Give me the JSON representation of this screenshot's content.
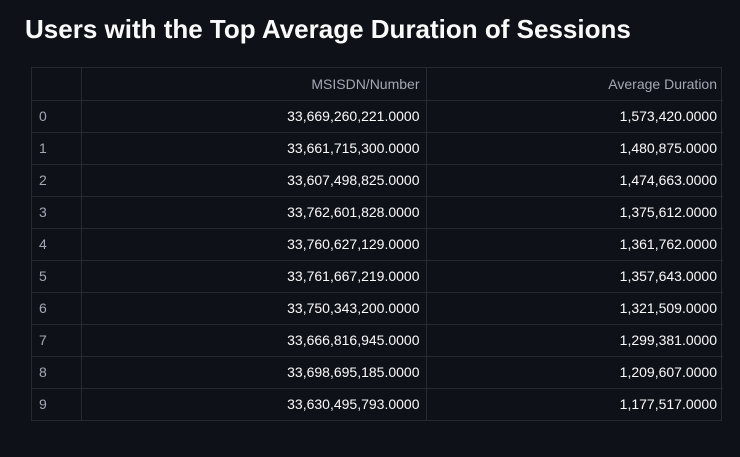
{
  "title": "Users with the Top Average Duration of Sessions",
  "table": {
    "index_header": "",
    "columns": [
      "MSISDN/Number",
      "Average Duration"
    ],
    "rows": [
      {
        "index": "0",
        "msisdn": "33,669,260,221.0000",
        "avg_duration": "1,573,420.0000"
      },
      {
        "index": "1",
        "msisdn": "33,661,715,300.0000",
        "avg_duration": "1,480,875.0000"
      },
      {
        "index": "2",
        "msisdn": "33,607,498,825.0000",
        "avg_duration": "1,474,663.0000"
      },
      {
        "index": "3",
        "msisdn": "33,762,601,828.0000",
        "avg_duration": "1,375,612.0000"
      },
      {
        "index": "4",
        "msisdn": "33,760,627,129.0000",
        "avg_duration": "1,361,762.0000"
      },
      {
        "index": "5",
        "msisdn": "33,761,667,219.0000",
        "avg_duration": "1,357,643.0000"
      },
      {
        "index": "6",
        "msisdn": "33,750,343,200.0000",
        "avg_duration": "1,321,509.0000"
      },
      {
        "index": "7",
        "msisdn": "33,666,816,945.0000",
        "avg_duration": "1,299,381.0000"
      },
      {
        "index": "8",
        "msisdn": "33,698,695,185.0000",
        "avg_duration": "1,209,607.0000"
      },
      {
        "index": "9",
        "msisdn": "33,630,495,793.0000",
        "avg_duration": "1,177,517.0000"
      }
    ]
  },
  "colors": {
    "background": "#0e1117",
    "text": "#fafafa",
    "muted_text": "#a3a8b4",
    "grid": "#262a33"
  }
}
